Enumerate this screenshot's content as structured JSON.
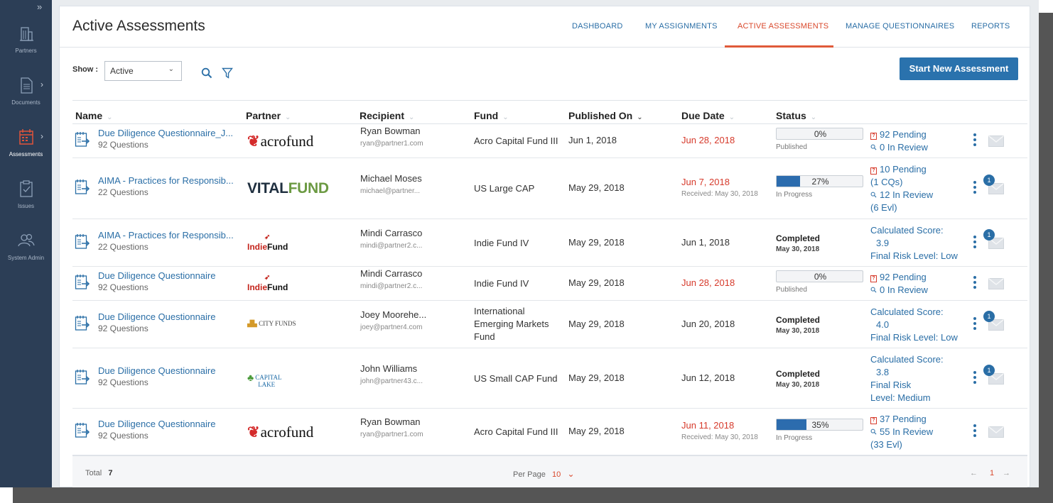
{
  "sidebar": {
    "expand_icon": "double-chevron-right",
    "items": [
      {
        "label": "Partners",
        "icon": "building-icon",
        "has_arrow": false
      },
      {
        "label": "Documents",
        "icon": "document-icon",
        "has_arrow": true
      },
      {
        "label": "Assessments",
        "icon": "calendar-icon",
        "has_arrow": true,
        "active": true
      },
      {
        "label": "Issues",
        "icon": "clipboard-icon",
        "has_arrow": false
      },
      {
        "label": "System Admin",
        "icon": "users-icon",
        "has_arrow": false
      }
    ]
  },
  "header": {
    "title": "Active Assessments",
    "tabs": [
      {
        "label": "DASHBOARD"
      },
      {
        "label": "MY ASSIGNMENTS"
      },
      {
        "label": "ACTIVE ASSESSMENTS",
        "active": true
      },
      {
        "label": "MANAGE QUESTIONNAIRES"
      },
      {
        "label": "REPORTS"
      }
    ]
  },
  "filters": {
    "show_label": "Show :",
    "show_value": "Active",
    "start_button": "Start New Assessment"
  },
  "columns": [
    "Name",
    "Partner",
    "Recipient",
    "Fund",
    "Published On",
    "Due Date",
    "Status"
  ],
  "rows": [
    {
      "name": "Due Diligence Questionnaire_J...",
      "questions": "92 Questions",
      "partner_logo": "acrofund",
      "recipient": "Ryan Bowman",
      "email": "ryan@partner1.com",
      "fund": "Acro Capital Fund III",
      "published": "Jun 1, 2018",
      "due": "Jun 28, 2018",
      "overdue": true,
      "received": "",
      "status_type": "progress",
      "progress": 0,
      "progress_text": "0%",
      "status_label": "Published",
      "info": [
        "92 Pending",
        "0 In Review"
      ],
      "badge": ""
    },
    {
      "name": "AIMA - Practices for Responsib...",
      "questions": "22 Questions",
      "partner_logo": "vitalfund",
      "recipient": "Michael Moses",
      "email": "michael@partner...",
      "fund": "US Large CAP",
      "published": "May 29, 2018",
      "due": "Jun 7, 2018",
      "overdue": true,
      "received": "Received: May 30, 2018",
      "status_type": "progress",
      "progress": 27,
      "progress_text": "27%",
      "status_label": "In Progress",
      "info": [
        "10 Pending",
        "(1 CQs)",
        "12 In Review",
        "(6 Evl)"
      ],
      "badge": "1"
    },
    {
      "name": "AIMA - Practices for Responsib...",
      "questions": "22 Questions",
      "partner_logo": "indiefund",
      "recipient": "Mindi Carrasco",
      "email": "mindi@partner2.c...",
      "fund": "Indie Fund IV",
      "published": "May 29, 2018",
      "due": "Jun 1, 2018",
      "overdue": false,
      "received": "",
      "status_type": "completed",
      "status_label": "Completed",
      "completed_date": "May 30, 2018",
      "info": [
        "Calculated Score:",
        "3.9",
        "Final Risk Level: Low"
      ],
      "badge": "1"
    },
    {
      "name": "Due Diligence Questionnaire",
      "questions": "92 Questions",
      "partner_logo": "indiefund",
      "recipient": "Mindi Carrasco",
      "email": "mindi@partner2.c...",
      "fund": "Indie Fund IV",
      "published": "May 29, 2018",
      "due": "Jun 28, 2018",
      "overdue": true,
      "received": "",
      "status_type": "progress",
      "progress": 0,
      "progress_text": "0%",
      "status_label": "Published",
      "info": [
        "92 Pending",
        "0 In Review"
      ],
      "badge": ""
    },
    {
      "name": "Due Diligence Questionnaire",
      "questions": "92 Questions",
      "partner_logo": "cityfunds",
      "recipient": "Joey Moorehe...",
      "email": "joey@partner4.com",
      "fund": "International Emerging Markets Fund",
      "published": "May 29, 2018",
      "due": "Jun 20, 2018",
      "overdue": false,
      "received": "",
      "status_type": "completed",
      "status_label": "Completed",
      "completed_date": "May 30, 2018",
      "info": [
        "Calculated Score:",
        "4.0",
        "Final Risk Level: Low"
      ],
      "badge": "1"
    },
    {
      "name": "Due Diligence Questionnaire",
      "questions": "92 Questions",
      "partner_logo": "capitallake",
      "recipient": "John Williams",
      "email": "john@partner43.c...",
      "fund": "US Small CAP Fund",
      "published": "May 29, 2018",
      "due": "Jun 12, 2018",
      "overdue": false,
      "received": "",
      "status_type": "completed",
      "status_label": "Completed",
      "completed_date": "May 30, 2018",
      "info": [
        "Calculated Score:",
        "3.8",
        "Final Risk",
        "Level: Medium"
      ],
      "badge": "1"
    },
    {
      "name": "Due Diligence Questionnaire",
      "questions": "92 Questions",
      "partner_logo": "acrofund",
      "recipient": "Ryan Bowman",
      "email": "ryan@partner1.com",
      "fund": "Acro Capital Fund III",
      "published": "May 29, 2018",
      "due": "Jun 11, 2018",
      "overdue": true,
      "received": "Received: May 30, 2018",
      "status_type": "progress",
      "progress": 35,
      "progress_text": "35%",
      "status_label": "In Progress",
      "info": [
        "37 Pending",
        "55 In Review",
        "(33 Evl)"
      ],
      "badge": ""
    }
  ],
  "logos": {
    "acrofund": "acrofund",
    "vitalfund_a": "VITAL",
    "vitalfund_b": "FUND",
    "indiefund_a": "Indie",
    "indiefund_b": "Fund",
    "cityfunds": "CITY FUNDS",
    "capitallake_a": "CAPITAL",
    "capitallake_b": "LAKE"
  },
  "footer": {
    "total_label": "Total",
    "total_value": "7",
    "per_page_label": "Per Page",
    "per_page_value": "10",
    "current_page": "1",
    "prev": "←",
    "next": "→"
  },
  "colors": {
    "sidebar_bg": "#2c3e56",
    "accent": "#2a6ea6",
    "active_tab": "#d9482b",
    "overdue": "#d63a2b",
    "button": "#2a72ad"
  }
}
